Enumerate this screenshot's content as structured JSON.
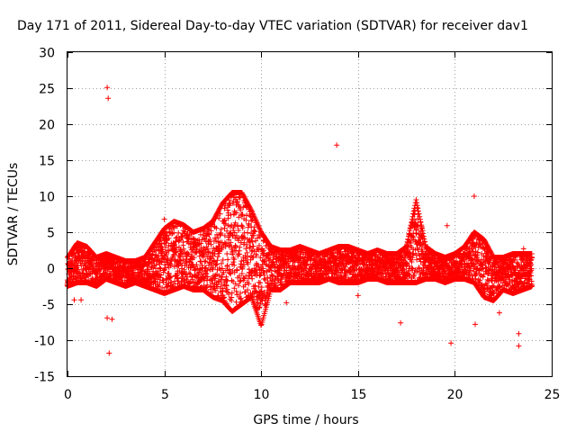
{
  "chart_data": {
    "type": "scatter",
    "title": "Day 171 of 2011, Sidereal Day-to-day VTEC variation (SDTVAR) for receiver dav1",
    "xlabel": "GPS time / hours",
    "ylabel": "SDTVAR / TECUs",
    "xlim": [
      0,
      25
    ],
    "ylim": [
      -15,
      30
    ],
    "xticks": [
      0,
      5,
      10,
      15,
      20,
      25
    ],
    "yticks": [
      -15,
      -10,
      -5,
      0,
      5,
      10,
      15,
      20,
      25,
      30
    ],
    "grid": true,
    "marker": "+",
    "series": [
      {
        "name": "dav1",
        "color": "#ff0000",
        "envelope": {
          "x": [
            0.0,
            0.5,
            1.0,
            1.5,
            2.0,
            2.5,
            3.0,
            3.5,
            4.0,
            4.5,
            5.0,
            5.5,
            6.0,
            6.5,
            7.0,
            7.5,
            8.0,
            8.5,
            9.0,
            9.5,
            10.0,
            10.5,
            11.0,
            11.5,
            12.0,
            12.5,
            13.0,
            13.5,
            14.0,
            14.5,
            15.0,
            15.5,
            16.0,
            16.5,
            17.0,
            17.5,
            18.0,
            18.5,
            19.0,
            19.5,
            20.0,
            20.5,
            21.0,
            21.5,
            22.0,
            22.5,
            23.0,
            23.5,
            24.0
          ],
          "high": [
            1.5,
            3.5,
            3.0,
            1.5,
            2.0,
            1.5,
            1.0,
            1.0,
            1.5,
            3.5,
            5.5,
            6.5,
            6.0,
            5.0,
            5.5,
            6.5,
            9.0,
            10.5,
            10.5,
            8.0,
            5.0,
            3.0,
            2.5,
            2.5,
            3.0,
            2.5,
            2.0,
            2.5,
            3.0,
            3.0,
            2.5,
            2.0,
            2.5,
            2.0,
            2.0,
            3.0,
            9.5,
            3.0,
            2.0,
            1.5,
            2.0,
            3.0,
            5.0,
            4.0,
            1.5,
            1.5,
            2.0,
            2.0,
            2.0
          ],
          "low": [
            -2.5,
            -2.0,
            -2.0,
            -2.5,
            -1.5,
            -2.0,
            -2.5,
            -2.0,
            -2.5,
            -3.0,
            -3.5,
            -3.0,
            -2.5,
            -3.0,
            -3.0,
            -4.0,
            -4.5,
            -6.0,
            -5.0,
            -4.0,
            -8.0,
            -3.0,
            -3.0,
            -2.0,
            -2.0,
            -2.0,
            -2.0,
            -1.5,
            -2.0,
            -2.0,
            -2.0,
            -1.5,
            -1.5,
            -2.0,
            -2.0,
            -2.0,
            -2.0,
            -1.5,
            -1.5,
            -2.0,
            -1.5,
            -1.5,
            -2.0,
            -4.0,
            -4.5,
            -3.0,
            -3.5,
            -3.0,
            -2.5
          ]
        },
        "outliers": [
          [
            2.05,
            25.1
          ],
          [
            2.1,
            23.6
          ],
          [
            13.9,
            17.1
          ],
          [
            21.0,
            10.0
          ],
          [
            19.6,
            5.9
          ],
          [
            0.35,
            -4.4
          ],
          [
            0.7,
            -4.4
          ],
          [
            2.05,
            -6.9
          ],
          [
            2.3,
            -7.1
          ],
          [
            2.15,
            -11.8
          ],
          [
            11.3,
            -4.8
          ],
          [
            17.2,
            -7.6
          ],
          [
            19.8,
            -10.4
          ],
          [
            21.05,
            -7.8
          ],
          [
            22.3,
            -6.2
          ],
          [
            23.3,
            -9.1
          ],
          [
            23.3,
            -10.8
          ],
          [
            15.0,
            -3.8
          ],
          [
            5.0,
            6.8
          ],
          [
            23.55,
            2.7
          ]
        ]
      }
    ]
  }
}
